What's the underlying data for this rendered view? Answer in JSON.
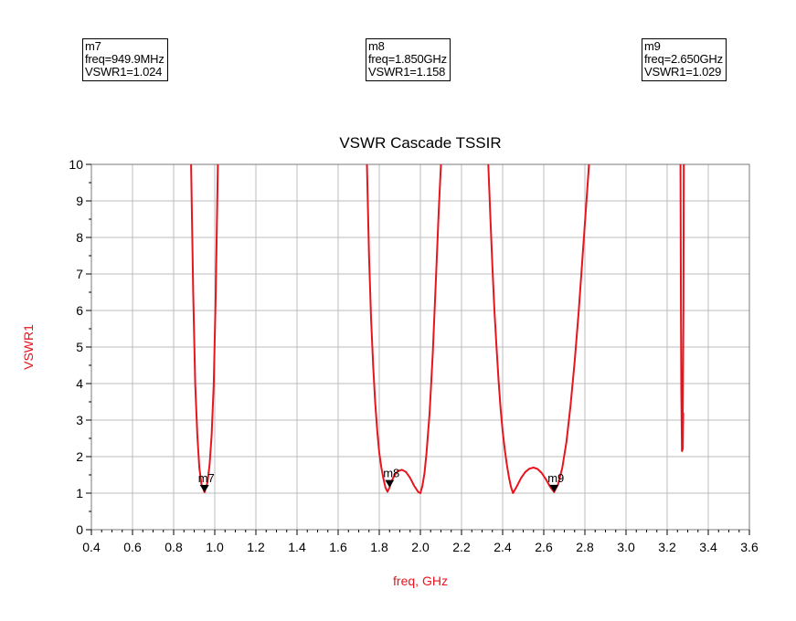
{
  "markers": [
    {
      "name": "m7",
      "freq_text": "freq=949.9MHz",
      "value_text": "VSWR1=1.024",
      "freq_ghz": 0.9499,
      "vswr": 1.024
    },
    {
      "name": "m8",
      "freq_text": "freq=1.850GHz",
      "value_text": "VSWR1=1.158",
      "freq_ghz": 1.85,
      "vswr": 1.158
    },
    {
      "name": "m9",
      "freq_text": "freq=2.650GHz",
      "value_text": "VSWR1=1.029",
      "freq_ghz": 2.65,
      "vswr": 1.029
    }
  ],
  "chart_data": {
    "type": "line",
    "title": "VSWR Cascade TSSIR",
    "xlabel": "freq, GHz",
    "ylabel": "VSWR1",
    "xlim": [
      0.4,
      3.6
    ],
    "ylim": [
      0,
      10
    ],
    "xticks": [
      "0.4",
      "0.6",
      "0.8",
      "1.0",
      "1.2",
      "1.4",
      "1.6",
      "1.8",
      "2.0",
      "2.2",
      "2.4",
      "2.6",
      "2.8",
      "3.0",
      "3.2",
      "3.4",
      "3.6"
    ],
    "yticks": [
      "0",
      "1",
      "2",
      "3",
      "4",
      "5",
      "6",
      "7",
      "8",
      "9",
      "10"
    ],
    "grid": true,
    "series_color": "#e8141e",
    "series": [
      {
        "segments": [
          [
            [
              0.885,
              10
            ],
            [
              0.895,
              6.5
            ],
            [
              0.905,
              4
            ],
            [
              0.915,
              2.6
            ],
            [
              0.925,
              1.7
            ],
            [
              0.935,
              1.25
            ],
            [
              0.95,
              1.024
            ],
            [
              0.965,
              1.3
            ],
            [
              0.975,
              1.8
            ],
            [
              0.985,
              2.6
            ],
            [
              0.995,
              4
            ],
            [
              1.005,
              6.5
            ],
            [
              1.015,
              10
            ]
          ],
          [
            [
              1.74,
              10
            ],
            [
              1.75,
              7.5
            ],
            [
              1.76,
              5.8
            ],
            [
              1.77,
              4.5
            ],
            [
              1.78,
              3.5
            ],
            [
              1.79,
              2.7
            ],
            [
              1.8,
              2.1
            ],
            [
              1.81,
              1.7
            ],
            [
              1.82,
              1.4
            ],
            [
              1.83,
              1.15
            ],
            [
              1.84,
              1.04
            ],
            [
              1.85,
              1.158
            ],
            [
              1.86,
              1.33
            ],
            [
              1.875,
              1.5
            ],
            [
              1.89,
              1.6
            ],
            [
              1.91,
              1.64
            ],
            [
              1.93,
              1.58
            ],
            [
              1.95,
              1.42
            ],
            [
              1.97,
              1.2
            ],
            [
              1.99,
              1.03
            ],
            [
              2.0,
              1.0
            ],
            [
              2.01,
              1.2
            ],
            [
              2.02,
              1.55
            ],
            [
              2.03,
              2.1
            ],
            [
              2.045,
              3.2
            ],
            [
              2.06,
              4.8
            ],
            [
              2.075,
              6.8
            ],
            [
              2.09,
              8.8
            ],
            [
              2.1,
              10
            ]
          ],
          [
            [
              2.33,
              10
            ],
            [
              2.34,
              8.6
            ],
            [
              2.35,
              7.2
            ],
            [
              2.36,
              6.0
            ],
            [
              2.37,
              5.0
            ],
            [
              2.38,
              4.1
            ],
            [
              2.39,
              3.3
            ],
            [
              2.4,
              2.7
            ],
            [
              2.41,
              2.2
            ],
            [
              2.42,
              1.8
            ],
            [
              2.43,
              1.45
            ],
            [
              2.44,
              1.18
            ],
            [
              2.45,
              1.0
            ],
            [
              2.47,
              1.2
            ],
            [
              2.49,
              1.42
            ],
            [
              2.51,
              1.58
            ],
            [
              2.53,
              1.67
            ],
            [
              2.55,
              1.7
            ],
            [
              2.57,
              1.66
            ],
            [
              2.59,
              1.55
            ],
            [
              2.61,
              1.38
            ],
            [
              2.63,
              1.18
            ],
            [
              2.65,
              1.029
            ],
            [
              2.67,
              1.25
            ],
            [
              2.69,
              1.7
            ],
            [
              2.71,
              2.4
            ],
            [
              2.73,
              3.4
            ],
            [
              2.75,
              4.6
            ],
            [
              2.77,
              6.0
            ],
            [
              2.79,
              7.6
            ],
            [
              2.81,
              9.2
            ],
            [
              2.82,
              10
            ]
          ],
          [
            [
              3.265,
              10
            ],
            [
              3.267,
              6.0
            ],
            [
              3.269,
              3.8
            ],
            [
              3.271,
              2.6
            ],
            [
              3.273,
              2.15
            ],
            [
              3.275,
              2.5
            ],
            [
              3.277,
              3.8
            ],
            [
              3.279,
              6.0
            ],
            [
              3.281,
              10
            ]
          ],
          [
            [
              3.272,
              2.15
            ],
            [
              3.274,
              2.8
            ],
            [
              3.276,
              2.2
            ],
            [
              3.278,
              3.2
            ]
          ]
        ]
      }
    ]
  }
}
